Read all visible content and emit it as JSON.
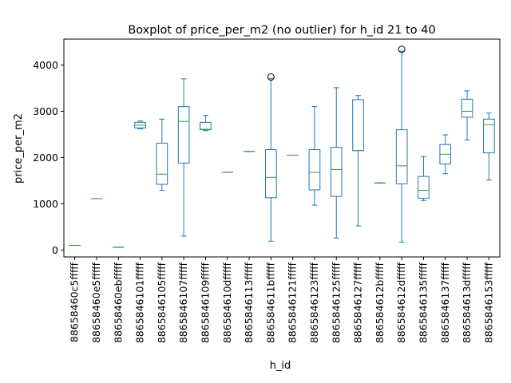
{
  "chart_data": {
    "type": "boxplot",
    "title": "Boxplot of price_per_m2 (no outlier) for h_id 21 to 40",
    "xlabel": "h_id",
    "ylabel": "price_per_m2",
    "ylim": [
      -150,
      4560
    ],
    "yticks": [
      0,
      1000,
      2000,
      3000,
      4000
    ],
    "grid": false,
    "categories": [
      "88658460c5fffff",
      "88658460e5fffff",
      "88658460ebfffff",
      "8865846101fffff",
      "8865846105fffff",
      "8865846107fffff",
      "8865846109fffff",
      "886584610dfffff",
      "8865846113fffff",
      "886584611bfffff",
      "8865846121fffff",
      "8865846123fffff",
      "8865846125fffff",
      "8865846127fffff",
      "886584612bfffff",
      "886584612dfffff",
      "8865846135fffff",
      "8865846137fffff",
      "886584613dfffff",
      "8865846153fffff"
    ],
    "boxes": [
      {
        "whislo": 100,
        "q1": 100,
        "med": 100,
        "q3": 100,
        "whishi": 100,
        "fliers": []
      },
      {
        "whislo": 1110,
        "q1": 1110,
        "med": 1110,
        "q3": 1110,
        "whishi": 1110,
        "fliers": []
      },
      {
        "whislo": 60,
        "q1": 60,
        "med": 60,
        "q3": 60,
        "whishi": 60,
        "fliers": []
      },
      {
        "whislo": 2620,
        "q1": 2640,
        "med": 2700,
        "q3": 2760,
        "whishi": 2790,
        "fliers": []
      },
      {
        "whislo": 1290,
        "q1": 1420,
        "med": 1640,
        "q3": 2310,
        "whishi": 2830,
        "fliers": []
      },
      {
        "whislo": 300,
        "q1": 1880,
        "med": 2780,
        "q3": 3100,
        "whishi": 3700,
        "fliers": []
      },
      {
        "whislo": 2580,
        "q1": 2600,
        "med": 2610,
        "q3": 2760,
        "whishi": 2910,
        "fliers": []
      },
      {
        "whislo": 1680,
        "q1": 1680,
        "med": 1680,
        "q3": 1680,
        "whishi": 1680,
        "fliers": []
      },
      {
        "whislo": 2130,
        "q1": 2130,
        "med": 2130,
        "q3": 2130,
        "whishi": 2130,
        "fliers": []
      },
      {
        "whislo": 190,
        "q1": 1130,
        "med": 1570,
        "q3": 2170,
        "whishi": 3710,
        "fliers": [
          3740
        ]
      },
      {
        "whislo": 2050,
        "q1": 2050,
        "med": 2050,
        "q3": 2050,
        "whishi": 2050,
        "fliers": []
      },
      {
        "whislo": 970,
        "q1": 1300,
        "med": 1680,
        "q3": 2170,
        "whishi": 3100,
        "fliers": []
      },
      {
        "whislo": 260,
        "q1": 1160,
        "med": 1740,
        "q3": 2220,
        "whishi": 3510,
        "fliers": []
      },
      {
        "whislo": 520,
        "q1": 2150,
        "med": 2150,
        "q3": 3250,
        "whishi": 3340,
        "fliers": []
      },
      {
        "whislo": 1450,
        "q1": 1450,
        "med": 1450,
        "q3": 1450,
        "whishi": 1450,
        "fliers": []
      },
      {
        "whislo": 170,
        "q1": 1430,
        "med": 1820,
        "q3": 2600,
        "whishi": 4300,
        "fliers": [
          4340
        ]
      },
      {
        "whislo": 1070,
        "q1": 1120,
        "med": 1290,
        "q3": 1590,
        "whishi": 2020,
        "fliers": []
      },
      {
        "whislo": 1650,
        "q1": 1860,
        "med": 2070,
        "q3": 2280,
        "whishi": 2490,
        "fliers": []
      },
      {
        "whislo": 2380,
        "q1": 2870,
        "med": 3000,
        "q3": 3260,
        "whishi": 3440,
        "fliers": []
      },
      {
        "whislo": 1510,
        "q1": 2100,
        "med": 2710,
        "q3": 2830,
        "whishi": 2960,
        "fliers": []
      }
    ],
    "colors": {
      "box": "#1f77b4",
      "median": "#2ca02c",
      "flier": "#000000",
      "axes": "#000000"
    }
  }
}
